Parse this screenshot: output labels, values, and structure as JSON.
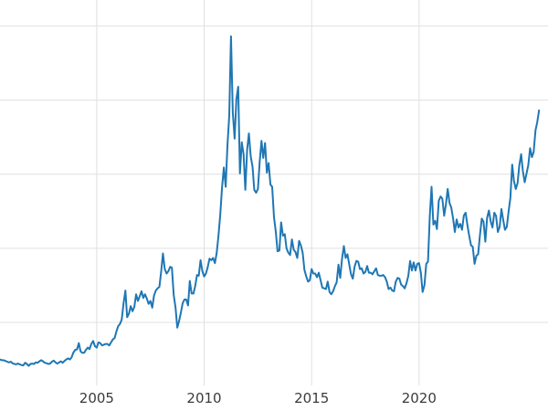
{
  "chart_data": {
    "type": "line",
    "title": "",
    "xlabel": "",
    "ylabel": "",
    "legend": false,
    "grid": true,
    "background_color": "#ffffff",
    "grid_color": "#e0e0e0",
    "line_color": "#1f77b4",
    "tick_label_color": "#3b3b3b",
    "x_tick_labels": [
      "2005",
      "2010",
      "2015",
      "2020"
    ],
    "x_tick_values": [
      2005,
      2010,
      2015,
      2020
    ],
    "y_gridline_values": [
      10,
      20,
      30,
      40,
      50
    ],
    "xlim": [
      2000.5,
      2026.0
    ],
    "ylim": [
      1.5,
      53.5
    ],
    "series": [
      {
        "x_start": 2000.5,
        "x_step_years": 0.0833333,
        "values": [
          5.0,
          4.9,
          4.9,
          4.8,
          4.7,
          4.6,
          4.7,
          4.5,
          4.4,
          4.35,
          4.45,
          4.35,
          4.25,
          4.2,
          4.55,
          4.4,
          4.15,
          4.4,
          4.45,
          4.4,
          4.6,
          4.55,
          4.75,
          4.9,
          4.75,
          4.55,
          4.5,
          4.4,
          4.45,
          4.7,
          4.85,
          4.6,
          4.45,
          4.6,
          4.75,
          4.55,
          4.8,
          5.0,
          5.15,
          5.0,
          5.3,
          5.95,
          6.3,
          6.35,
          7.2,
          6.1,
          5.9,
          5.9,
          6.3,
          6.6,
          6.4,
          7.1,
          7.5,
          6.8,
          6.6,
          7.3,
          7.2,
          6.9,
          7.0,
          7.1,
          7.1,
          6.9,
          7.3,
          7.7,
          7.9,
          8.8,
          9.5,
          9.8,
          10.4,
          12.6,
          14.3,
          10.7,
          11.2,
          12.2,
          11.5,
          12.1,
          13.8,
          12.9,
          13.5,
          14.2,
          13.3,
          13.8,
          13.2,
          12.5,
          12.9,
          12.0,
          13.6,
          14.3,
          14.6,
          14.8,
          16.9,
          19.3,
          17.2,
          16.6,
          16.9,
          17.5,
          17.4,
          13.7,
          12.0,
          9.3,
          10.2,
          11.3,
          12.6,
          13.1,
          13.1,
          12.3,
          15.6,
          13.9,
          13.9,
          14.9,
          16.4,
          16.3,
          18.4,
          16.9,
          16.2,
          16.6,
          17.5,
          18.6,
          18.4,
          18.7,
          18.0,
          19.4,
          21.7,
          24.6,
          28.2,
          30.9,
          28.3,
          33.8,
          37.9,
          48.6,
          38.3,
          34.8,
          40.1,
          41.8,
          30.1,
          34.3,
          32.7,
          27.9,
          33.3,
          35.5,
          32.4,
          31.0,
          27.9,
          27.5,
          28.0,
          31.6,
          34.5,
          32.2,
          34.2,
          30.2,
          31.5,
          28.6,
          28.3,
          24.2,
          22.2,
          19.6,
          19.7,
          23.5,
          21.7,
          21.9,
          20.0,
          19.4,
          19.1,
          21.2,
          19.8,
          19.5,
          18.7,
          21.0,
          20.4,
          19.4,
          17.1,
          16.2,
          15.5,
          15.7,
          17.2,
          16.6,
          16.6,
          16.1,
          16.7,
          15.7,
          14.7,
          14.6,
          14.5,
          15.5,
          14.1,
          13.8,
          14.2,
          14.9,
          15.4,
          17.8,
          16.0,
          18.6,
          20.3,
          18.7,
          19.2,
          17.8,
          16.5,
          15.9,
          17.5,
          18.3,
          18.2,
          17.2,
          17.3,
          16.6,
          16.8,
          17.6,
          16.7,
          16.7,
          16.5,
          16.9,
          17.3,
          16.4,
          16.3,
          16.3,
          16.4,
          16.1,
          15.5,
          14.5,
          14.7,
          14.3,
          14.2,
          15.5,
          16.0,
          15.9,
          15.1,
          14.9,
          14.6,
          15.3,
          16.3,
          18.3,
          17.0,
          18.1,
          17.0,
          17.9,
          18.0,
          16.7,
          14.1,
          15.0,
          17.9,
          18.2,
          24.4,
          28.3,
          23.2,
          23.7,
          22.6,
          26.4,
          27.0,
          26.7,
          24.4,
          25.9,
          28.0,
          26.1,
          25.5,
          24.0,
          22.2,
          23.9,
          22.8,
          23.3,
          22.5,
          24.4,
          24.8,
          23.1,
          21.7,
          20.4,
          20.2,
          17.9,
          19.0,
          19.2,
          21.8,
          24.0,
          23.6,
          20.9,
          24.1,
          25.1,
          23.6,
          22.8,
          24.8,
          24.4,
          22.2,
          22.9,
          25.3,
          23.8,
          22.5,
          22.9,
          25.0,
          26.8,
          31.3,
          29.1,
          28.0,
          28.8,
          31.2,
          32.7,
          30.4,
          28.9,
          30.1,
          31.2,
          33.5,
          32.3,
          33.0,
          35.9,
          37.0,
          38.6
        ]
      }
    ]
  }
}
